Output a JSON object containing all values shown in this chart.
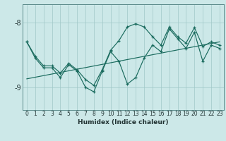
{
  "xlabel": "Humidex (Indice chaleur)",
  "x": [
    0,
    1,
    2,
    3,
    4,
    5,
    6,
    7,
    8,
    9,
    10,
    11,
    12,
    13,
    14,
    15,
    16,
    17,
    18,
    19,
    20,
    21,
    22,
    23
  ],
  "line_jagged": [
    -8.3,
    -8.55,
    -8.7,
    -8.7,
    -8.85,
    -8.65,
    -8.75,
    -9.0,
    -9.07,
    -8.75,
    -8.45,
    -8.6,
    -8.95,
    -8.85,
    -8.55,
    -8.35,
    -8.45,
    -8.1,
    -8.25,
    -8.4,
    -8.15,
    -8.6,
    -8.35,
    -8.4
  ],
  "line_smooth": [
    -8.3,
    -8.52,
    -8.67,
    -8.67,
    -8.78,
    -8.63,
    -8.73,
    -8.88,
    -8.97,
    -8.73,
    -8.43,
    -8.28,
    -8.07,
    -8.02,
    -8.07,
    -8.22,
    -8.35,
    -8.07,
    -8.22,
    -8.32,
    -8.08,
    -8.37,
    -8.3,
    -8.35
  ],
  "trend_x": [
    0,
    23
  ],
  "trend_y": [
    -8.87,
    -8.3
  ],
  "background_color": "#cce8e8",
  "line_color": "#1a6b5e",
  "grid_color": "#a0c8c8",
  "tick_color": "#223333",
  "ylim": [
    -9.35,
    -7.72
  ],
  "yticks": [
    -9,
    -8
  ],
  "xlim": [
    -0.5,
    23.5
  ],
  "xlabel_fontsize": 6.5,
  "ylabel_fontsize": 7,
  "tick_fontsize": 5.5,
  "linewidth": 0.85,
  "markersize": 3.5
}
